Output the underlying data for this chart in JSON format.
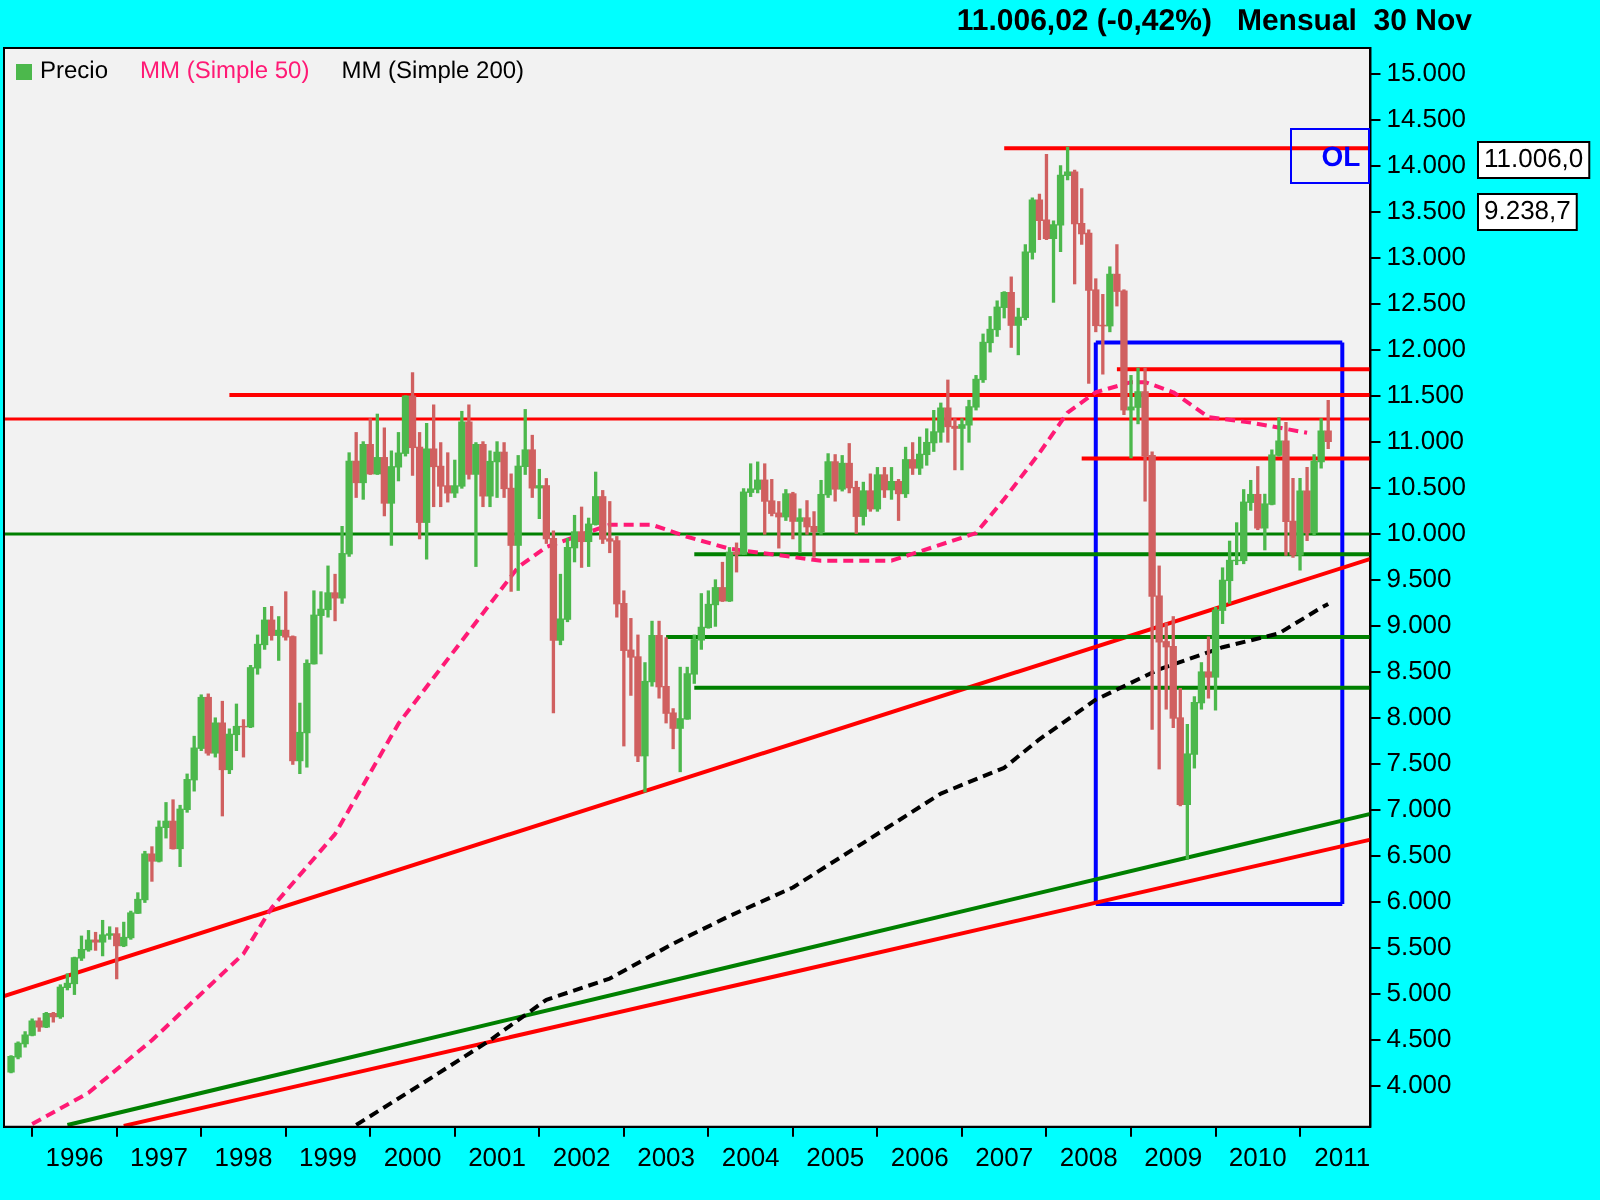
{
  "chart_data": {
    "type": "candlestick",
    "title": "11.006,02 (-0,42%)   Mensual  30 Nov",
    "legend": "top left",
    "marker": "none",
    "xlim": [
      "1995-03",
      "2011-05"
    ],
    "xticks": [
      "1996",
      "1997",
      "1998",
      "1999",
      "2000",
      "2001",
      "2002",
      "2003",
      "2004",
      "2005",
      "2006",
      "2007",
      "2008",
      "2009",
      "2010",
      "2011"
    ],
    "ylim": [
      3560,
      15280
    ],
    "yticks": [
      {
        "value": 4000,
        "label": "4.000"
      },
      {
        "value": 4500,
        "label": "4.500"
      },
      {
        "value": 5000,
        "label": "5.000"
      },
      {
        "value": 5500,
        "label": "5.500"
      },
      {
        "value": 6000,
        "label": "6.000"
      },
      {
        "value": 6500,
        "label": "6.500"
      },
      {
        "value": 7000,
        "label": "7.000"
      },
      {
        "value": 7500,
        "label": "7.500"
      },
      {
        "value": 8000,
        "label": "8.000"
      },
      {
        "value": 8500,
        "label": "8.500"
      },
      {
        "value": 9000,
        "label": "9.000"
      },
      {
        "value": 9500,
        "label": "9.500"
      },
      {
        "value": 10000,
        "label": "10.000"
      },
      {
        "value": 10500,
        "label": "10.500"
      },
      {
        "value": 11000,
        "label": "11.000"
      },
      {
        "value": 11500,
        "label": "11.500"
      },
      {
        "value": 12000,
        "label": "12.000"
      },
      {
        "value": 12500,
        "label": "12.500"
      },
      {
        "value": 13000,
        "label": "13.000"
      },
      {
        "value": 13500,
        "label": "13.500"
      },
      {
        "value": 14000,
        "label": "14.000"
      },
      {
        "value": 14500,
        "label": "14.500"
      },
      {
        "value": 15000,
        "label": "15.000"
      }
    ],
    "ref_lines": [
      {
        "axis": "y",
        "value": 11250,
        "color": "#ff0000"
      },
      {
        "axis": "y",
        "value": 10000,
        "color": "#008000"
      }
    ],
    "annotations": [
      "OL",
      "11.006,0",
      "9.238,7"
    ],
    "series": [
      {
        "name": "Precio",
        "x": [
          "1995-04",
          "1995-05",
          "1995-06",
          "1995-07",
          "1995-08",
          "1995-09",
          "1995-10",
          "1995-11",
          "1995-12",
          "1996-01",
          "1996-02",
          "1996-03",
          "1996-04",
          "1996-05",
          "1996-06",
          "1996-07",
          "1996-08",
          "1996-09",
          "1996-10",
          "1996-11",
          "1996-12",
          "1997-01",
          "1997-02",
          "1997-03",
          "1997-04",
          "1997-05",
          "1997-06",
          "1997-07",
          "1997-08",
          "1997-09",
          "1997-10",
          "1997-11",
          "1997-12",
          "1998-01",
          "1998-02",
          "1998-03",
          "1998-04",
          "1998-05",
          "1998-06",
          "1998-07",
          "1998-08",
          "1998-09",
          "1998-10",
          "1998-11",
          "1998-12",
          "1999-01",
          "1999-02",
          "1999-03",
          "1999-04",
          "1999-05",
          "1999-06",
          "1999-07",
          "1999-08",
          "1999-09",
          "1999-10",
          "1999-11",
          "1999-12",
          "2000-01",
          "2000-02",
          "2000-03",
          "2000-04",
          "2000-05",
          "2000-06",
          "2000-07",
          "2000-08",
          "2000-09",
          "2000-10",
          "2000-11",
          "2000-12",
          "2001-01",
          "2001-02",
          "2001-03",
          "2001-04",
          "2001-05",
          "2001-06",
          "2001-07",
          "2001-08",
          "2001-09",
          "2001-10",
          "2001-11",
          "2001-12",
          "2002-01",
          "2002-02",
          "2002-03",
          "2002-04",
          "2002-05",
          "2002-06",
          "2002-07",
          "2002-08",
          "2002-09",
          "2002-10",
          "2002-11",
          "2002-12",
          "2003-01",
          "2003-02",
          "2003-03",
          "2003-04",
          "2003-05",
          "2003-06",
          "2003-07",
          "2003-08",
          "2003-09",
          "2003-10",
          "2003-11",
          "2003-12",
          "2004-01",
          "2004-02",
          "2004-03",
          "2004-04",
          "2004-05",
          "2004-06",
          "2004-07",
          "2004-08",
          "2004-09",
          "2004-10",
          "2004-11",
          "2004-12",
          "2005-01",
          "2005-02",
          "2005-03",
          "2005-04",
          "2005-05",
          "2005-06",
          "2005-07",
          "2005-08",
          "2005-09",
          "2005-10",
          "2005-11",
          "2005-12",
          "2006-01",
          "2006-02",
          "2006-03",
          "2006-04",
          "2006-05",
          "2006-06",
          "2006-07",
          "2006-08",
          "2006-09",
          "2006-10",
          "2006-11",
          "2006-12",
          "2007-01",
          "2007-02",
          "2007-03",
          "2007-04",
          "2007-05",
          "2007-06",
          "2007-07",
          "2007-08",
          "2007-09",
          "2007-10",
          "2007-11",
          "2007-12",
          "2008-01",
          "2008-02",
          "2008-03",
          "2008-04",
          "2008-05",
          "2008-06",
          "2008-07",
          "2008-08",
          "2008-09",
          "2008-10",
          "2008-11",
          "2008-12",
          "2009-01",
          "2009-02",
          "2009-03",
          "2009-04",
          "2009-05",
          "2009-06",
          "2009-07",
          "2009-08",
          "2009-09",
          "2009-10",
          "2009-11",
          "2009-12",
          "2010-01",
          "2010-02",
          "2010-03",
          "2010-04",
          "2010-05",
          "2010-06",
          "2010-07",
          "2010-08",
          "2010-09",
          "2010-10",
          "2010-11"
        ],
        "ohlc": [
          [
            4158,
            4330,
            4150,
            4321
          ],
          [
            4321,
            4480,
            4300,
            4465
          ],
          [
            4465,
            4590,
            4430,
            4556
          ],
          [
            4556,
            4730,
            4550,
            4708
          ],
          [
            4708,
            4740,
            4600,
            4647
          ],
          [
            4647,
            4800,
            4640,
            4789
          ],
          [
            4789,
            4800,
            4700,
            4756
          ],
          [
            4756,
            5100,
            4740,
            5075
          ],
          [
            5075,
            5220,
            5050,
            5117
          ],
          [
            5117,
            5400,
            5000,
            5395
          ],
          [
            5395,
            5630,
            5370,
            5485
          ],
          [
            5485,
            5690,
            5470,
            5587
          ],
          [
            5587,
            5670,
            5480,
            5569
          ],
          [
            5569,
            5800,
            5420,
            5643
          ],
          [
            5643,
            5730,
            5600,
            5655
          ],
          [
            5655,
            5720,
            5170,
            5529
          ],
          [
            5529,
            5780,
            5520,
            5616
          ],
          [
            5616,
            5900,
            5600,
            5882
          ],
          [
            5882,
            6100,
            5880,
            6029
          ],
          [
            6029,
            6550,
            6000,
            6522
          ],
          [
            6522,
            6600,
            6230,
            6448
          ],
          [
            6448,
            6880,
            6440,
            6813
          ],
          [
            6813,
            7080,
            6700,
            6878
          ],
          [
            6878,
            7110,
            6580,
            6584
          ],
          [
            6584,
            7050,
            6390,
            7009
          ],
          [
            7009,
            7390,
            6980,
            7331
          ],
          [
            7331,
            7800,
            7210,
            7673
          ],
          [
            7673,
            8250,
            7650,
            8223
          ],
          [
            8223,
            8260,
            7600,
            7622
          ],
          [
            7622,
            8000,
            7580,
            7945
          ],
          [
            7945,
            8180,
            6940,
            7442
          ],
          [
            7442,
            7880,
            7400,
            7823
          ],
          [
            7823,
            8150,
            7650,
            7908
          ],
          [
            7908,
            7980,
            7580,
            7907
          ],
          [
            7907,
            8570,
            7900,
            8546
          ],
          [
            8546,
            8900,
            8480,
            8800
          ],
          [
            8800,
            9200,
            8750,
            9063
          ],
          [
            9063,
            9210,
            8850,
            8900
          ],
          [
            8900,
            9100,
            8630,
            8952
          ],
          [
            8952,
            9370,
            8850,
            8883
          ],
          [
            8883,
            8890,
            7500,
            7539
          ],
          [
            7539,
            8160,
            7400,
            7843
          ],
          [
            7843,
            8630,
            7470,
            8592
          ],
          [
            8592,
            9380,
            8590,
            9117
          ],
          [
            9117,
            9370,
            8700,
            9181
          ],
          [
            9181,
            9650,
            9100,
            9359
          ],
          [
            9359,
            9560,
            9060,
            9307
          ],
          [
            9307,
            10080,
            9250,
            9786
          ],
          [
            9786,
            10880,
            9760,
            10789
          ],
          [
            10789,
            11100,
            10400,
            10560
          ],
          [
            10560,
            11000,
            10380,
            10971
          ],
          [
            10971,
            11250,
            10650,
            10655
          ],
          [
            10655,
            11300,
            10650,
            10829
          ],
          [
            10829,
            11150,
            10200,
            10337
          ],
          [
            10337,
            10900,
            9880,
            10730
          ],
          [
            10730,
            11100,
            10580,
            10878
          ],
          [
            10878,
            11500,
            10850,
            11497
          ],
          [
            11497,
            11750,
            10640,
            10941
          ],
          [
            10941,
            11100,
            9950,
            10128
          ],
          [
            10128,
            11200,
            9730,
            10922
          ],
          [
            10922,
            11400,
            10300,
            10734
          ],
          [
            10734,
            10990,
            10300,
            10522
          ],
          [
            10522,
            10880,
            10350,
            10448
          ],
          [
            10448,
            10800,
            10400,
            10522
          ],
          [
            10522,
            11330,
            10500,
            11215
          ],
          [
            11215,
            11400,
            10600,
            10651
          ],
          [
            10651,
            10990,
            9650,
            10971
          ],
          [
            10971,
            11000,
            10300,
            10415
          ],
          [
            10415,
            10900,
            10300,
            10787
          ],
          [
            10787,
            11000,
            10400,
            10887
          ],
          [
            10887,
            10990,
            10400,
            10495
          ],
          [
            10495,
            10650,
            9380,
            9879
          ],
          [
            9879,
            10850,
            9390,
            10735
          ],
          [
            10735,
            11350,
            10650,
            10912
          ],
          [
            10912,
            11070,
            10400,
            10502
          ],
          [
            10502,
            10700,
            10170,
            10523
          ],
          [
            10523,
            10600,
            9900,
            9950
          ],
          [
            9950,
            10030,
            8060,
            8848
          ],
          [
            8848,
            9560,
            8800,
            9075
          ],
          [
            9075,
            9950,
            9050,
            9852
          ],
          [
            9852,
            10200,
            9700,
            10022
          ],
          [
            10022,
            10290,
            9640,
            9920
          ],
          [
            9920,
            10170,
            9650,
            10106
          ],
          [
            10106,
            10670,
            10100,
            10404
          ],
          [
            10404,
            10470,
            9900,
            9946
          ],
          [
            9946,
            10350,
            9800,
            9925
          ],
          [
            9925,
            9970,
            9100,
            9243
          ],
          [
            9243,
            9380,
            7700,
            8737
          ],
          [
            8737,
            9080,
            8250,
            8664
          ],
          [
            8664,
            8900,
            7530,
            7592
          ],
          [
            7592,
            8600,
            7200,
            8397
          ],
          [
            8397,
            9050,
            8350,
            8896
          ],
          [
            8896,
            9050,
            8220,
            8342
          ],
          [
            8342,
            8870,
            7950,
            8054
          ],
          [
            8054,
            8100,
            7670,
            7891
          ],
          [
            7891,
            8550,
            7420,
            7992
          ],
          [
            7992,
            8550,
            7990,
            8480
          ],
          [
            8480,
            8900,
            8380,
            8850
          ],
          [
            8850,
            9350,
            8750,
            8985
          ],
          [
            8985,
            9380,
            8980,
            9234
          ],
          [
            9234,
            9500,
            9000,
            9416
          ],
          [
            9416,
            9690,
            9270,
            9275
          ],
          [
            9275,
            9850,
            9270,
            9801
          ],
          [
            9801,
            9900,
            9590,
            9782
          ],
          [
            9782,
            10490,
            9780,
            10454
          ],
          [
            10454,
            10760,
            10410,
            10488
          ],
          [
            10488,
            10780,
            10450,
            10584
          ],
          [
            10584,
            10760,
            10000,
            10358
          ],
          [
            10358,
            10590,
            10200,
            10226
          ],
          [
            10226,
            10350,
            9850,
            10188
          ],
          [
            10188,
            10480,
            10150,
            10435
          ],
          [
            10435,
            10450,
            9950,
            10140
          ],
          [
            10140,
            10270,
            9800,
            10174
          ],
          [
            10174,
            10360,
            10000,
            10080
          ],
          [
            10080,
            10240,
            9750,
            10027
          ],
          [
            10027,
            10580,
            10000,
            10428
          ],
          [
            10428,
            10870,
            10400,
            10783
          ],
          [
            10783,
            10860,
            10360,
            10490
          ],
          [
            10490,
            10850,
            10470,
            10766
          ],
          [
            10766,
            10980,
            10450,
            10504
          ],
          [
            10504,
            10570,
            10010,
            10193
          ],
          [
            10193,
            10560,
            10100,
            10467
          ],
          [
            10467,
            10650,
            10250,
            10275
          ],
          [
            10275,
            10720,
            10250,
            10641
          ],
          [
            10641,
            10720,
            10400,
            10482
          ],
          [
            10482,
            10720,
            10380,
            10569
          ],
          [
            10569,
            10590,
            10150,
            10440
          ],
          [
            10440,
            10940,
            10400,
            10806
          ],
          [
            10806,
            10990,
            10650,
            10718
          ],
          [
            10718,
            11050,
            10650,
            10865
          ],
          [
            10865,
            11140,
            10750,
            10993
          ],
          [
            10993,
            11340,
            10900,
            11109
          ],
          [
            11109,
            11420,
            11000,
            11367
          ],
          [
            11367,
            11670,
            11000,
            11168
          ],
          [
            11168,
            11250,
            10700,
            11150
          ],
          [
            11150,
            11250,
            10700,
            11186
          ],
          [
            11186,
            11450,
            11000,
            11381
          ],
          [
            11381,
            11720,
            11350,
            11679
          ],
          [
            11679,
            12170,
            11650,
            12081
          ],
          [
            12081,
            12360,
            11980,
            12222
          ],
          [
            12222,
            12530,
            12150,
            12463
          ],
          [
            12463,
            12630,
            12350,
            12622
          ],
          [
            12622,
            12790,
            12030,
            12269
          ],
          [
            12269,
            12450,
            11950,
            12354
          ],
          [
            12354,
            13140,
            12330,
            13063
          ],
          [
            13063,
            13650,
            12990,
            13628
          ],
          [
            13628,
            13690,
            13200,
            13409
          ],
          [
            13409,
            14120,
            13200,
            13212
          ],
          [
            13212,
            13400,
            12520,
            13358
          ],
          [
            13358,
            14000,
            13070,
            13896
          ],
          [
            13896,
            14200,
            13850,
            13930
          ],
          [
            13930,
            13950,
            12720,
            13372
          ],
          [
            13372,
            13750,
            13150,
            13265
          ],
          [
            13265,
            13300,
            11640,
            12650
          ],
          [
            12650,
            12770,
            12200,
            12266
          ],
          [
            12266,
            12600,
            11740,
            12263
          ],
          [
            12263,
            12900,
            12200,
            12820
          ],
          [
            12820,
            13140,
            12480,
            12638
          ],
          [
            12638,
            12650,
            11300,
            11350
          ],
          [
            11350,
            11720,
            10830,
            11378
          ],
          [
            11378,
            11800,
            11200,
            11544
          ],
          [
            11544,
            11800,
            10360,
            10851
          ],
          [
            10851,
            10890,
            7880,
            9325
          ],
          [
            9325,
            9650,
            7450,
            8829
          ],
          [
            8829,
            9030,
            8100,
            8776
          ],
          [
            8776,
            9100,
            7900,
            8001
          ],
          [
            8001,
            8320,
            7050,
            7063
          ],
          [
            7063,
            7930,
            6470,
            7609
          ],
          [
            7609,
            8230,
            7460,
            8168
          ],
          [
            8168,
            8600,
            8100,
            8500
          ],
          [
            8500,
            8880,
            8220,
            8447
          ],
          [
            8447,
            9200,
            8090,
            9172
          ],
          [
            9172,
            9630,
            9030,
            9496
          ],
          [
            9496,
            9920,
            9250,
            9712
          ],
          [
            9712,
            10120,
            9670,
            9713
          ],
          [
            9713,
            10480,
            9680,
            10345
          ],
          [
            10345,
            10580,
            10260,
            10428
          ],
          [
            10428,
            10730,
            10050,
            10067
          ],
          [
            10067,
            10430,
            9830,
            10325
          ],
          [
            10325,
            10910,
            10320,
            10857
          ],
          [
            10857,
            11260,
            10850,
            11009
          ],
          [
            11009,
            11210,
            9770,
            10137
          ],
          [
            10137,
            10600,
            9750,
            9774
          ],
          [
            9774,
            10600,
            9610,
            10466
          ],
          [
            10466,
            10720,
            9930,
            10015
          ],
          [
            10015,
            10860,
            9990,
            10788
          ],
          [
            10788,
            11250,
            10720,
            11118
          ],
          [
            11118,
            11450,
            10930,
            11006
          ]
        ],
        "colors": [
          "#4cb84c",
          "#4cb84c",
          "#4cb84c",
          "#4cb84c",
          "#d06060",
          "#4cb84c",
          "#d06060",
          "#4cb84c",
          "#4cb84c",
          "#4cb84c",
          "#4cb84c",
          "#4cb84c",
          "#d06060",
          "#4cb84c",
          "#4cb84c",
          "#d06060",
          "#4cb84c",
          "#4cb84c",
          "#4cb84c",
          "#4cb84c",
          "#d06060",
          "#4cb84c",
          "#4cb84c",
          "#d06060",
          "#4cb84c",
          "#4cb84c",
          "#4cb84c",
          "#4cb84c",
          "#d06060",
          "#4cb84c",
          "#d06060",
          "#4cb84c",
          "#4cb84c",
          "#d06060",
          "#4cb84c",
          "#4cb84c",
          "#4cb84c",
          "#d06060",
          "#4cb84c",
          "#d06060",
          "#d06060",
          "#4cb84c",
          "#4cb84c",
          "#4cb84c",
          "#4cb84c",
          "#4cb84c",
          "#d06060",
          "#4cb84c",
          "#4cb84c",
          "#d06060",
          "#4cb84c",
          "#d06060",
          "#4cb84c",
          "#d06060",
          "#4cb84c",
          "#4cb84c",
          "#4cb84c",
          "#d06060",
          "#d06060",
          "#4cb84c",
          "#d06060",
          "#d06060",
          "#d06060",
          "#4cb84c",
          "#4cb84c",
          "#d06060",
          "#4cb84c",
          "#d06060",
          "#4cb84c",
          "#4cb84c",
          "#d06060",
          "#d06060",
          "#4cb84c",
          "#4cb84c",
          "#d06060",
          "#4cb84c",
          "#d06060",
          "#d06060",
          "#4cb84c",
          "#4cb84c",
          "#4cb84c",
          "#d06060",
          "#4cb84c",
          "#4cb84c",
          "#d06060",
          "#d06060",
          "#d06060",
          "#d06060",
          "#d06060",
          "#d06060",
          "#4cb84c",
          "#4cb84c",
          "#d06060",
          "#d06060",
          "#d06060",
          "#4cb84c",
          "#4cb84c",
          "#4cb84c",
          "#4cb84c",
          "#4cb84c",
          "#4cb84c",
          "#d06060",
          "#4cb84c",
          "#d06060",
          "#4cb84c",
          "#4cb84c",
          "#4cb84c",
          "#d06060",
          "#d06060",
          "#d06060",
          "#4cb84c",
          "#d06060",
          "#4cb84c",
          "#d06060",
          "#d06060",
          "#4cb84c",
          "#4cb84c",
          "#d06060",
          "#4cb84c",
          "#d06060",
          "#d06060",
          "#4cb84c",
          "#d06060",
          "#4cb84c",
          "#d06060",
          "#4cb84c",
          "#d06060",
          "#4cb84c",
          "#d06060",
          "#4cb84c",
          "#4cb84c",
          "#4cb84c",
          "#4cb84c",
          "#d06060",
          "#d06060",
          "#4cb84c",
          "#4cb84c",
          "#4cb84c",
          "#4cb84c",
          "#4cb84c",
          "#4cb84c",
          "#4cb84c",
          "#d06060",
          "#4cb84c",
          "#4cb84c",
          "#4cb84c",
          "#d06060",
          "#d06060",
          "#4cb84c",
          "#4cb84c",
          "#4cb84c",
          "#d06060",
          "#d06060",
          "#d06060",
          "#d06060",
          "#d06060",
          "#4cb84c",
          "#d06060",
          "#d06060",
          "#4cb84c",
          "#4cb84c",
          "#d06060",
          "#d06060",
          "#d06060",
          "#d06060",
          "#d06060",
          "#d06060",
          "#4cb84c",
          "#4cb84c",
          "#4cb84c",
          "#d06060",
          "#4cb84c",
          "#4cb84c",
          "#4cb84c",
          "#4cb84c",
          "#4cb84c",
          "#4cb84c",
          "#d06060",
          "#4cb84c",
          "#4cb84c",
          "#4cb84c",
          "#d06060",
          "#d06060",
          "#4cb84c",
          "#d06060",
          "#4cb84c",
          "#4cb84c",
          "#d06060"
        ]
      },
      {
        "type": "line",
        "name": "MM (Simple 50)",
        "color": "#ff1a75",
        "line_style": "dashed",
        "x": [
          "1995-07",
          "1996-03",
          "1996-12",
          "1998-01",
          "1998-05",
          "1999-02",
          "1999-11",
          "2000-11",
          "2001-04",
          "2001-08",
          "2002-05",
          "2002-11",
          "2003-04",
          "2003-10",
          "2004-07",
          "2004-11",
          "2005-09",
          "2006-03",
          "2006-09",
          "2007-01",
          "2007-06",
          "2007-10",
          "2008-02",
          "2008-07",
          "2008-09",
          "2009-01",
          "2009-06",
          "2009-12",
          "2010-08"
        ],
        "values": [
          3590,
          3930,
          4500,
          5440,
          5940,
          6740,
          7940,
          9140,
          9640,
          9860,
          10100,
          10100,
          9970,
          9840,
          9750,
          9710,
          9710,
          9860,
          10010,
          10380,
          10880,
          11320,
          11540,
          11650,
          11650,
          11540,
          11270,
          11210,
          11100
        ]
      },
      {
        "type": "line",
        "name": "MM (Simple 200)",
        "color": "#000000",
        "line_style": "dashed",
        "x": [
          "1999-05",
          "2000-03",
          "2000-12",
          "2001-08",
          "2002-05",
          "2003-02",
          "2003-10",
          "2004-07",
          "2005-08",
          "2006-04",
          "2007-01",
          "2007-06",
          "2008-02",
          "2008-11",
          "2009-08",
          "2010-04",
          "2010-10",
          "2010-11"
        ],
        "values": [
          3580,
          4060,
          4500,
          4940,
          5170,
          5550,
          5850,
          6160,
          6790,
          7180,
          7460,
          7770,
          8200,
          8530,
          8770,
          8920,
          9200,
          9240
        ]
      },
      {
        "type": "line",
        "color": "#ff0000",
        "x": [
          "2007-01",
          "2011-05"
        ],
        "values": [
          14190,
          14190
        ]
      },
      {
        "type": "line",
        "color": "#ff0000",
        "x": [
          "1997-11",
          "2011-05"
        ],
        "values": [
          11510,
          11510
        ]
      },
      {
        "type": "line",
        "color": "#ff0000",
        "x": [
          "2008-05",
          "2011-05"
        ],
        "values": [
          11790,
          11790
        ]
      },
      {
        "type": "line",
        "color": "#ff0000",
        "x": [
          "2007-12",
          "2011-05"
        ],
        "values": [
          10820,
          10820
        ]
      },
      {
        "type": "line",
        "color": "#008000",
        "x": [
          "2003-05",
          "2011-05"
        ],
        "values": [
          9780,
          9780
        ]
      },
      {
        "type": "line",
        "color": "#008000",
        "x": [
          "2003-01",
          "2011-05"
        ],
        "values": [
          8880,
          8880
        ]
      },
      {
        "type": "line",
        "color": "#008000",
        "x": [
          "2003-05",
          "2011-05"
        ],
        "values": [
          8330,
          8330
        ]
      },
      {
        "type": "line",
        "color": "#ff0000",
        "x": [
          "1995-03",
          "2011-05"
        ],
        "values": [
          4980,
          9730
        ]
      },
      {
        "type": "line",
        "color": "#008000",
        "x": [
          "1995-12",
          "2011-05"
        ],
        "values": [
          3580,
          6960
        ]
      },
      {
        "type": "line",
        "color": "#ff0000",
        "x": [
          "1996-08",
          "2011-05"
        ],
        "values": [
          3570,
          6680
        ]
      },
      {
        "type": "line",
        "color": "#0000ff",
        "x": [
          "2008-02",
          "2011-01"
        ],
        "values": [
          12080,
          12080
        ]
      },
      {
        "type": "line",
        "color": "#0000ff",
        "x": [
          "2008-02",
          "2011-01"
        ],
        "values": [
          5980,
          5980
        ]
      },
      {
        "type": "line",
        "color": "#0000ff",
        "x": [
          "2008-02",
          "2008-02"
        ],
        "values": [
          5980,
          12080
        ]
      },
      {
        "type": "line",
        "color": "#0000ff",
        "x": [
          "2011-01",
          "2011-01"
        ],
        "values": [
          5980,
          12080
        ]
      }
    ]
  }
}
